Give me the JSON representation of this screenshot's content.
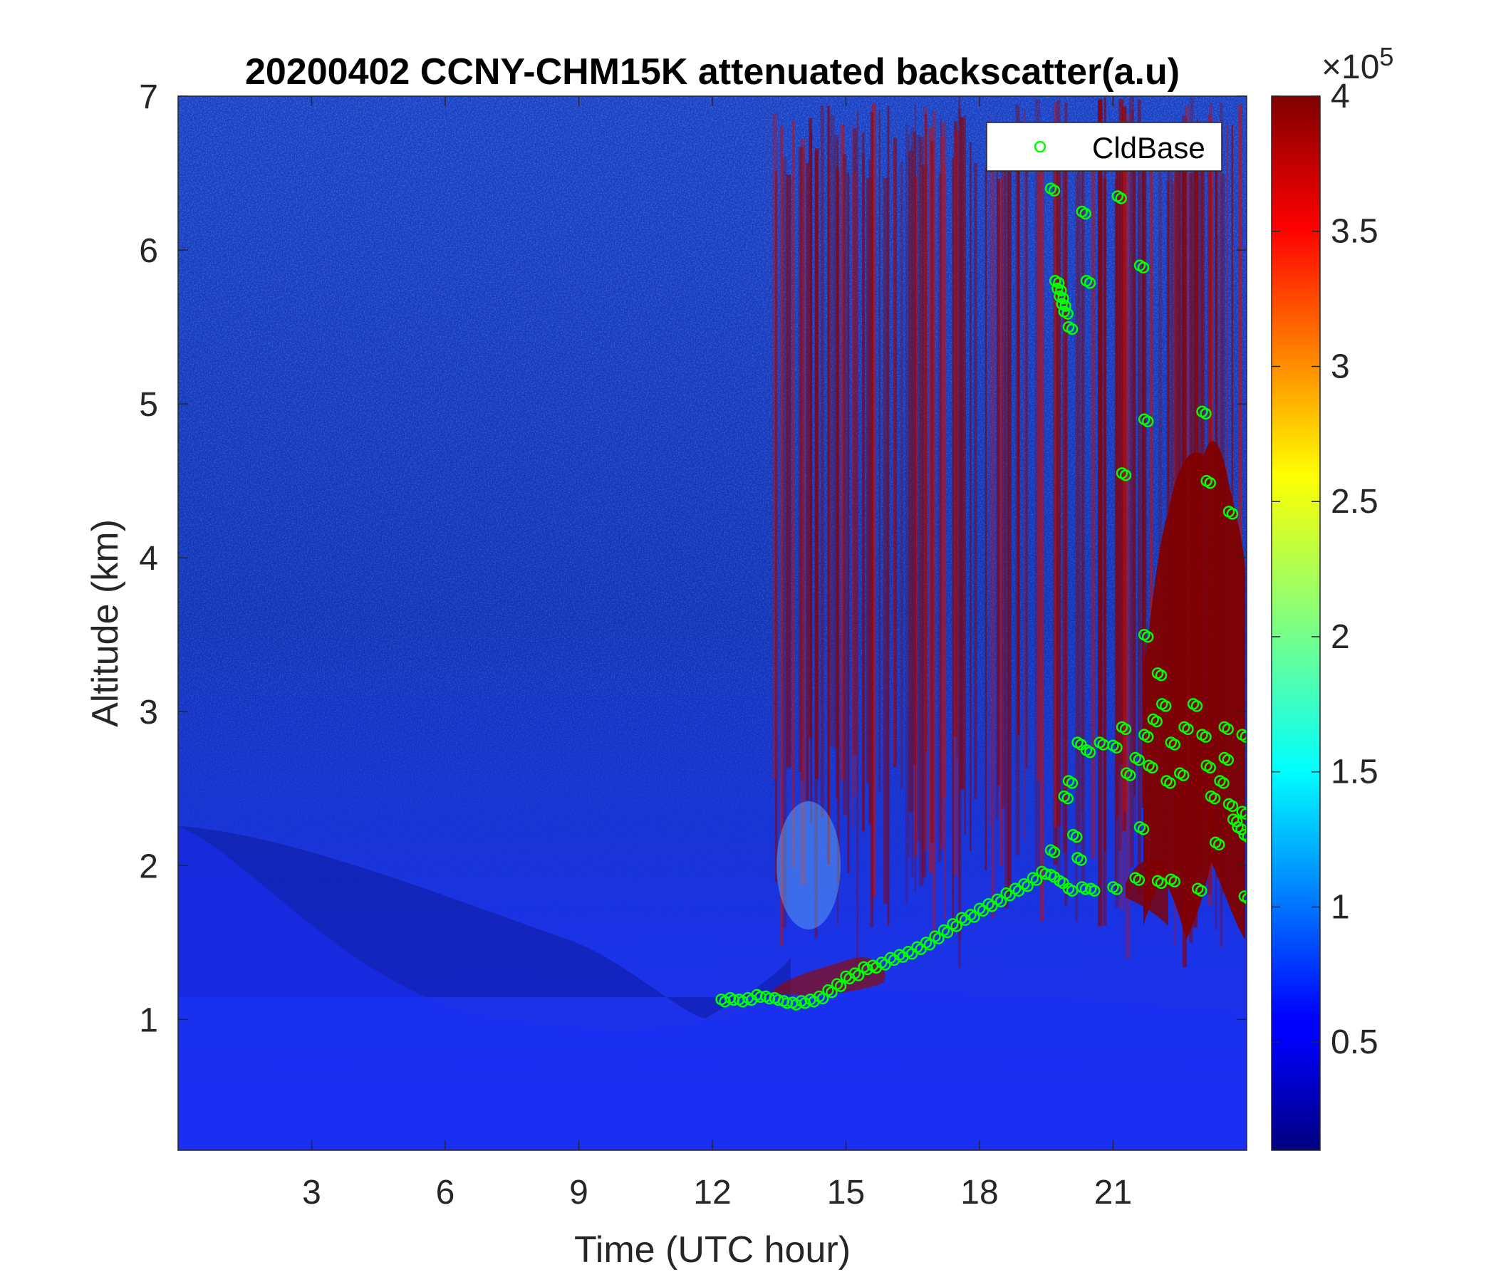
{
  "chart_data": {
    "type": "heatmap",
    "title": "20200402 CCNY-CHM15K attenuated backscatter(a.u)",
    "xlabel": "Time (UTC hour)",
    "ylabel": "Altitude (km)",
    "xlim": [
      0,
      24
    ],
    "ylim": [
      0.15,
      7
    ],
    "x_ticks": [
      "3",
      "6",
      "9",
      "12",
      "15",
      "18",
      "21"
    ],
    "x_tick_values": [
      3,
      6,
      9,
      12,
      15,
      18,
      21
    ],
    "y_ticks": [
      "1",
      "2",
      "3",
      "4",
      "5",
      "6",
      "7"
    ],
    "y_tick_values": [
      1,
      2,
      3,
      4,
      5,
      6,
      7
    ],
    "colorbar": {
      "colormap": "jet",
      "range": [
        10000,
        400000
      ],
      "exponent_label": "×10",
      "exponent_power": "5",
      "ticks": [
        "0.5",
        "1",
        "1.5",
        "2",
        "2.5",
        "3",
        "3.5",
        "4"
      ],
      "tick_values": [
        0.5,
        1,
        1.5,
        2,
        2.5,
        3,
        3.5,
        4
      ]
    },
    "legend": {
      "position": "top-right",
      "entries": [
        "CldBase"
      ],
      "marker": "circle",
      "color": "#00ff00"
    },
    "series": [
      {
        "name": "CldBase",
        "marker": "circle",
        "color": "#00ff00",
        "points": [
          [
            12.2,
            1.13
          ],
          [
            12.4,
            1.14
          ],
          [
            12.6,
            1.13
          ],
          [
            12.8,
            1.14
          ],
          [
            13.0,
            1.16
          ],
          [
            13.2,
            1.15
          ],
          [
            13.4,
            1.14
          ],
          [
            13.6,
            1.12
          ],
          [
            13.8,
            1.11
          ],
          [
            14.0,
            1.12
          ],
          [
            14.2,
            1.13
          ],
          [
            14.4,
            1.15
          ],
          [
            14.6,
            1.19
          ],
          [
            14.8,
            1.23
          ],
          [
            15.0,
            1.28
          ],
          [
            15.2,
            1.3
          ],
          [
            15.4,
            1.34
          ],
          [
            15.6,
            1.35
          ],
          [
            15.8,
            1.37
          ],
          [
            16.0,
            1.4
          ],
          [
            16.2,
            1.42
          ],
          [
            16.4,
            1.44
          ],
          [
            16.6,
            1.47
          ],
          [
            16.8,
            1.5
          ],
          [
            17.0,
            1.54
          ],
          [
            17.2,
            1.58
          ],
          [
            17.4,
            1.62
          ],
          [
            17.6,
            1.66
          ],
          [
            17.8,
            1.68
          ],
          [
            18.0,
            1.72
          ],
          [
            18.2,
            1.75
          ],
          [
            18.4,
            1.78
          ],
          [
            18.6,
            1.82
          ],
          [
            18.8,
            1.85
          ],
          [
            19.0,
            1.88
          ],
          [
            19.2,
            1.92
          ],
          [
            19.4,
            1.96
          ],
          [
            19.6,
            1.94
          ],
          [
            19.8,
            1.9
          ],
          [
            20.0,
            1.85
          ],
          [
            20.3,
            1.86
          ],
          [
            20.5,
            1.85
          ],
          [
            21.0,
            1.86
          ],
          [
            21.5,
            1.92
          ],
          [
            22.0,
            1.9
          ],
          [
            22.3,
            1.91
          ],
          [
            19.6,
            2.1
          ],
          [
            20.2,
            2.05
          ],
          [
            20.1,
            2.2
          ],
          [
            19.9,
            2.45
          ],
          [
            20.0,
            2.55
          ],
          [
            20.2,
            2.8
          ],
          [
            20.4,
            2.75
          ],
          [
            20.7,
            2.8
          ],
          [
            21.0,
            2.78
          ],
          [
            21.2,
            2.9
          ],
          [
            21.3,
            2.6
          ],
          [
            21.5,
            2.7
          ],
          [
            21.7,
            2.85
          ],
          [
            21.9,
            2.95
          ],
          [
            22.1,
            3.05
          ],
          [
            22.3,
            2.8
          ],
          [
            22.5,
            2.6
          ],
          [
            22.6,
            2.9
          ],
          [
            22.8,
            3.05
          ],
          [
            23.0,
            2.85
          ],
          [
            23.1,
            2.65
          ],
          [
            23.2,
            2.45
          ],
          [
            23.4,
            2.55
          ],
          [
            23.5,
            2.7
          ],
          [
            23.6,
            2.4
          ],
          [
            23.7,
            2.3
          ],
          [
            23.8,
            2.25
          ],
          [
            23.9,
            2.35
          ],
          [
            23.95,
            2.2
          ],
          [
            23.9,
            2.85
          ],
          [
            22.0,
            3.25
          ],
          [
            21.7,
            3.5
          ],
          [
            21.6,
            2.25
          ],
          [
            22.9,
            1.85
          ],
          [
            23.5,
            2.9
          ],
          [
            23.3,
            2.15
          ],
          [
            22.2,
            2.55
          ],
          [
            21.8,
            2.65
          ],
          [
            23.95,
            1.8
          ],
          [
            19.7,
            5.8
          ],
          [
            19.8,
            5.7
          ],
          [
            19.9,
            5.6
          ],
          [
            20.0,
            5.5
          ],
          [
            19.85,
            5.65
          ],
          [
            20.4,
            5.8
          ],
          [
            20.3,
            6.25
          ],
          [
            19.6,
            6.4
          ],
          [
            21.1,
            6.35
          ],
          [
            21.6,
            5.9
          ],
          [
            21.7,
            4.9
          ],
          [
            21.2,
            4.55
          ],
          [
            23.0,
            4.95
          ],
          [
            23.1,
            4.5
          ],
          [
            23.6,
            4.3
          ],
          [
            19.75,
            5.75
          ]
        ]
      }
    ]
  }
}
